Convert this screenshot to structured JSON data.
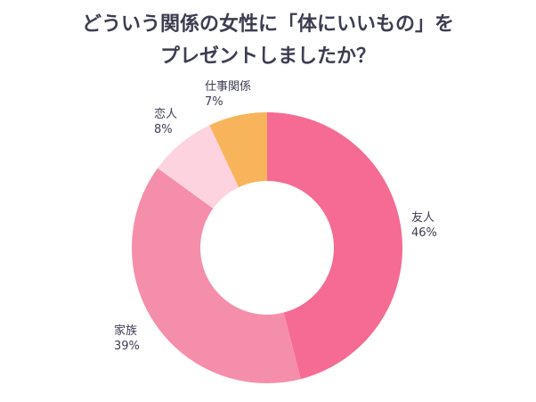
{
  "chart_data": {
    "type": "pie",
    "donut": true,
    "title": [
      "どういう関係の女性に「体にいいもの」を",
      "プレゼントしましたか？"
    ],
    "unit": "%",
    "start_angle_deg": 0,
    "direction": "clockwise",
    "slices": [
      {
        "label": "友人",
        "value": 46,
        "display": "46%",
        "color": "#f56b93"
      },
      {
        "label": "家族",
        "value": 39,
        "display": "39%",
        "color": "#f58eab"
      },
      {
        "label": "恋人",
        "value": 8,
        "display": "8%",
        "color": "#fcd3df"
      },
      {
        "label": "仕事関係",
        "value": 7,
        "display": "7%",
        "color": "#f8b45a"
      }
    ]
  }
}
